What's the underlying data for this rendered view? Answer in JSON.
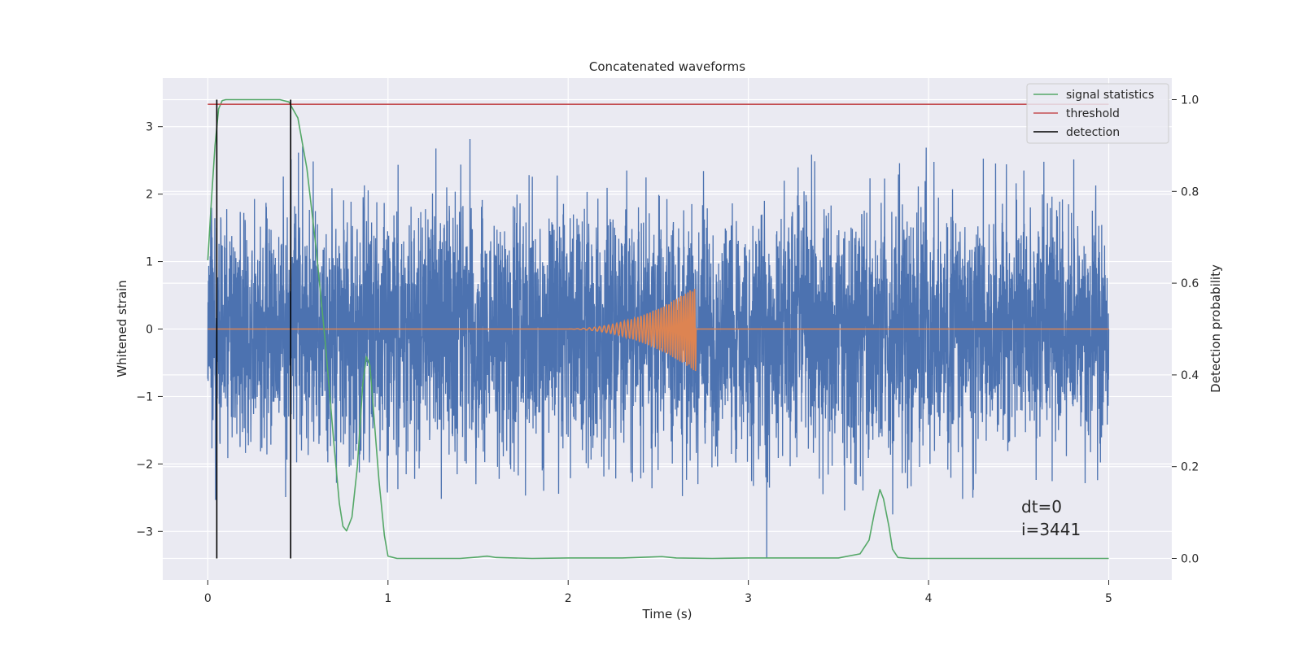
{
  "chart_data": {
    "type": "line",
    "title": "Concatenated waveforms",
    "xlabel": "Time (s)",
    "ylabel_left": "Whitened strain",
    "ylabel_right": "Detection probability",
    "xlim": [
      -0.25,
      5.35
    ],
    "ylim_left": [
      -3.72,
      3.72
    ],
    "ylim_right": [
      -0.047,
      1.047
    ],
    "x_ticks": [
      0,
      1,
      2,
      3,
      4,
      5
    ],
    "x_tick_labels": [
      "0",
      "1",
      "2",
      "3",
      "4",
      "5"
    ],
    "y_left_ticks": [
      -3,
      -2,
      -1,
      0,
      1,
      2,
      3
    ],
    "y_left_tick_labels": [
      "−3",
      "−2",
      "−1",
      "0",
      "1",
      "2",
      "3"
    ],
    "y_right_ticks": [
      0.0,
      0.2,
      0.4,
      0.6,
      0.8,
      1.0
    ],
    "y_right_tick_labels": [
      "0.0",
      "0.2",
      "0.4",
      "0.6",
      "0.8",
      "1.0"
    ],
    "grid": true,
    "legend_position": "top-right",
    "series": [
      {
        "name": "",
        "kind": "noise",
        "axis": "left",
        "color": "#4c72b0",
        "x_range": [
          0,
          5
        ],
        "rms": 0.9,
        "peak": 3.4
      },
      {
        "name": "",
        "kind": "chirp",
        "axis": "left",
        "color": "#dd8452",
        "x_range": [
          0,
          5
        ],
        "chirp_start": 2.0,
        "chirp_end": 2.71,
        "peak_amplitude": 0.6
      },
      {
        "name": "signal statistics",
        "axis": "right",
        "color": "#55a868",
        "x": [
          0.0,
          0.02,
          0.04,
          0.06,
          0.08,
          0.1,
          0.15,
          0.2,
          0.3,
          0.4,
          0.45,
          0.5,
          0.55,
          0.6,
          0.65,
          0.7,
          0.73,
          0.75,
          0.77,
          0.8,
          0.83,
          0.86,
          0.88,
          0.9,
          0.92,
          0.95,
          0.98,
          1.0,
          1.05,
          1.2,
          1.4,
          1.5,
          1.55,
          1.6,
          1.8,
          2.0,
          2.3,
          2.45,
          2.52,
          2.6,
          2.8,
          3.0,
          3.5,
          3.62,
          3.67,
          3.7,
          3.73,
          3.75,
          3.78,
          3.8,
          3.83,
          3.9,
          4.0,
          4.5,
          5.0
        ],
        "y": [
          0.65,
          0.78,
          0.9,
          0.98,
          0.998,
          1.0,
          1.0,
          1.0,
          1.0,
          1.0,
          0.995,
          0.96,
          0.85,
          0.68,
          0.48,
          0.25,
          0.12,
          0.07,
          0.06,
          0.09,
          0.2,
          0.38,
          0.44,
          0.42,
          0.32,
          0.17,
          0.05,
          0.005,
          0.0,
          0.0,
          0.0,
          0.003,
          0.005,
          0.002,
          0.0,
          0.001,
          0.001,
          0.003,
          0.004,
          0.001,
          0.0,
          0.001,
          0.001,
          0.01,
          0.04,
          0.1,
          0.15,
          0.13,
          0.07,
          0.02,
          0.002,
          0.0,
          0.0,
          0.0,
          0.0
        ]
      },
      {
        "name": "threshold",
        "axis": "right",
        "color": "#c44e52",
        "x": [
          0,
          5
        ],
        "y": [
          0.99,
          0.99
        ]
      },
      {
        "name": "detection",
        "axis": "right",
        "color": "#000000",
        "type": "vlines",
        "x": [
          0.05,
          0.46
        ],
        "y_range": [
          0.0,
          1.0
        ]
      }
    ],
    "annotations": [
      "dt=0",
      "i=3441"
    ]
  }
}
